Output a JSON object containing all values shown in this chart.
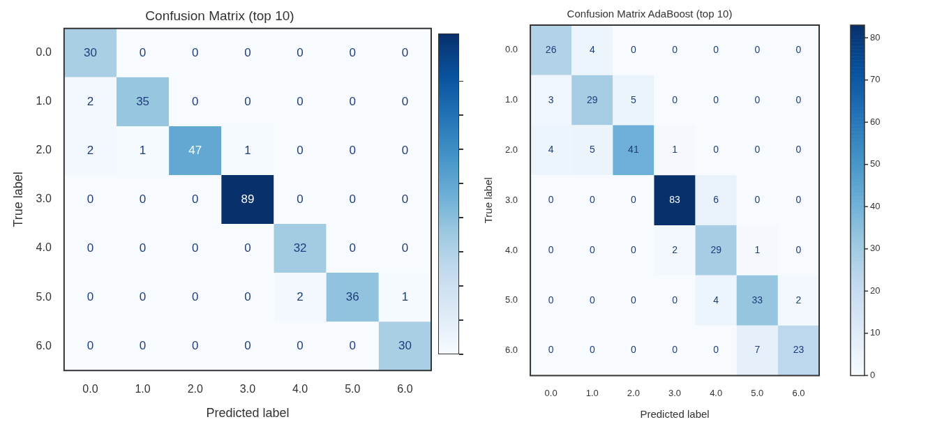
{
  "chart_data": [
    {
      "type": "heatmap",
      "title": "Confusion Matrix (top 10)",
      "xlabel": "Predicted label",
      "ylabel": "True label",
      "categories": [
        "0.0",
        "1.0",
        "2.0",
        "3.0",
        "4.0",
        "5.0",
        "6.0"
      ],
      "y_categories": [
        "0.0",
        "1.0",
        "2.0",
        "3.0",
        "4.0",
        "5.0",
        "6.0"
      ],
      "data_labels": true,
      "cells": [
        [
          30,
          0,
          0,
          0,
          0,
          0,
          0
        ],
        [
          2,
          35,
          0,
          0,
          0,
          0,
          0
        ],
        [
          2,
          1,
          47,
          1,
          0,
          0,
          0
        ],
        [
          0,
          0,
          0,
          89,
          0,
          0,
          0
        ],
        [
          0,
          0,
          0,
          0,
          32,
          0,
          0
        ],
        [
          0,
          0,
          0,
          0,
          2,
          36,
          1
        ],
        [
          0,
          0,
          0,
          0,
          0,
          0,
          30
        ]
      ]
    },
    {
      "type": "heatmap",
      "title": "Confusion Matrix AdaBoost (top 10)",
      "xlabel": "Predicted label",
      "ylabel": "True label",
      "categories": [
        "0.0",
        "1.0",
        "2.0",
        "3.0",
        "4.0",
        "5.0",
        "6.0"
      ],
      "y_categories": [
        "0.0",
        "1.0",
        "2.0",
        "3.0",
        "4.0",
        "5.0",
        "6.0"
      ],
      "data_labels": true,
      "cells": [
        [
          26,
          4,
          0,
          0,
          0,
          0,
          0
        ],
        [
          3,
          29,
          5,
          0,
          0,
          0,
          0
        ],
        [
          4,
          5,
          41,
          1,
          0,
          0,
          0
        ],
        [
          0,
          0,
          0,
          83,
          6,
          0,
          0
        ],
        [
          0,
          0,
          0,
          2,
          29,
          1,
          0
        ],
        [
          0,
          0,
          0,
          0,
          4,
          33,
          2
        ],
        [
          0,
          0,
          0,
          0,
          0,
          7,
          23
        ]
      ],
      "clim": [
        0,
        83
      ],
      "cticks": [
        0,
        10,
        20,
        30,
        40,
        50,
        60,
        70,
        80
      ]
    }
  ]
}
